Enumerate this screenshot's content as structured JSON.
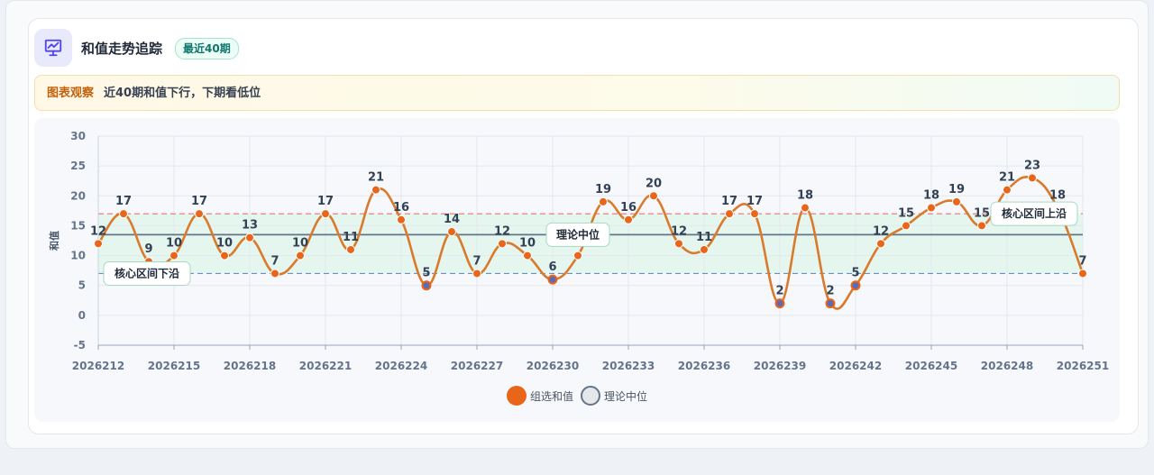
{
  "header": {
    "title": "和值走势追踪",
    "badge": "最近40期",
    "icon": "chart-presentation-icon"
  },
  "insight": {
    "tag": "图表观察",
    "text": "近40期和值下行，下期看低位"
  },
  "colors": {
    "series": "#e8651a",
    "series_line": "#d97a2c",
    "midline": "#64748b",
    "upper_line": "#e57373",
    "lower_line": "#6b8fc2",
    "band": "#dff5ea",
    "low_point": "#5b6bb5"
  },
  "legend": {
    "series_label": "组选和值",
    "midline_label": "理论中位"
  },
  "chart_data": {
    "type": "line",
    "ylabel": "和值",
    "xlabel": "",
    "ylim": [
      -5,
      30
    ],
    "yticks": [
      -5,
      0,
      5,
      10,
      15,
      20,
      25,
      30
    ],
    "x": [
      "2026212",
      "2026213",
      "2026214",
      "2026215",
      "2026216",
      "2026217",
      "2026218",
      "2026219",
      "2026220",
      "2026221",
      "2026222",
      "2026223",
      "2026224",
      "2026225",
      "2026226",
      "2026227",
      "2026228",
      "2026229",
      "2026230",
      "2026231",
      "2026232",
      "2026233",
      "2026234",
      "2026235",
      "2026236",
      "2026237",
      "2026238",
      "2026239",
      "2026240",
      "2026241",
      "2026242",
      "2026243",
      "2026244",
      "2026245",
      "2026246",
      "2026247",
      "2026248",
      "2026249",
      "2026250",
      "2026251"
    ],
    "xtick_labels": [
      "2026212",
      "2026215",
      "2026218",
      "2026221",
      "2026224",
      "2026227",
      "2026230",
      "2026233",
      "2026236",
      "2026239",
      "2026242",
      "2026245",
      "2026248",
      "2026251"
    ],
    "series": [
      {
        "name": "组选和值",
        "values": [
          12,
          17,
          9,
          10,
          17,
          10,
          13,
          7,
          10,
          17,
          11,
          21,
          16,
          5,
          14,
          7,
          12,
          10,
          6,
          10,
          19,
          16,
          20,
          12,
          11,
          17,
          17,
          2,
          18,
          2,
          5,
          12,
          15,
          18,
          19,
          15,
          21,
          23,
          18,
          7
        ]
      }
    ],
    "midline": {
      "name": "理论中位",
      "value": 13.5
    },
    "band": {
      "lower": 7,
      "upper": 17
    },
    "annotations": [
      {
        "text": "核心区间下沿",
        "x": "2026212",
        "y": 7
      },
      {
        "text": "理论中位",
        "x": "2026231",
        "y": 13.5
      },
      {
        "text": "核心区间上沿",
        "x": "2026250",
        "y": 17
      }
    ],
    "grid": true,
    "legend_position": "bottom"
  }
}
